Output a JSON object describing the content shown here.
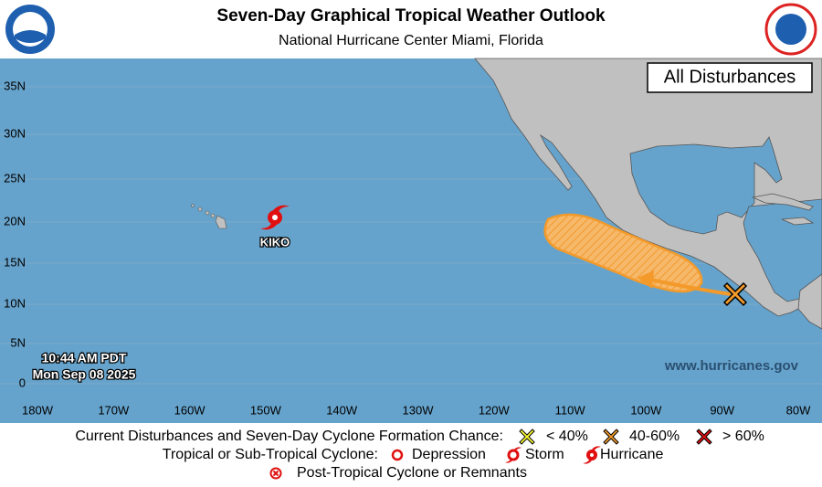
{
  "header": {
    "title": "Seven-Day Graphical Tropical Weather Outlook",
    "subtitle": "National Hurricane Center  Miami, Florida"
  },
  "map": {
    "panel_label": "All Disturbances",
    "lat_labels": [
      "35N",
      "30N",
      "25N",
      "20N",
      "15N",
      "10N",
      "5N",
      "0"
    ],
    "lon_labels": [
      "180W",
      "170W",
      "160W",
      "150W",
      "140W",
      "130W",
      "120W",
      "110W",
      "100W",
      "90W",
      "80W"
    ],
    "storm_name": "KIKO",
    "issue_time": "10:44 AM PDT",
    "issue_date": "Mon Sep 08 2025",
    "website": "www.hurricanes.gov"
  },
  "legend": {
    "disturbances_label": "Current Disturbances and Seven-Day Cyclone Formation Chance:",
    "low": "< 40%",
    "medium": "40-60%",
    "high": "> 60%",
    "cyclone_label": "Tropical or Sub-Tropical Cyclone:",
    "depression": "Depression",
    "storm": "Storm",
    "hurricane": "Hurricane",
    "post_tropical": "Post-Tropical Cyclone or Remnants"
  }
}
